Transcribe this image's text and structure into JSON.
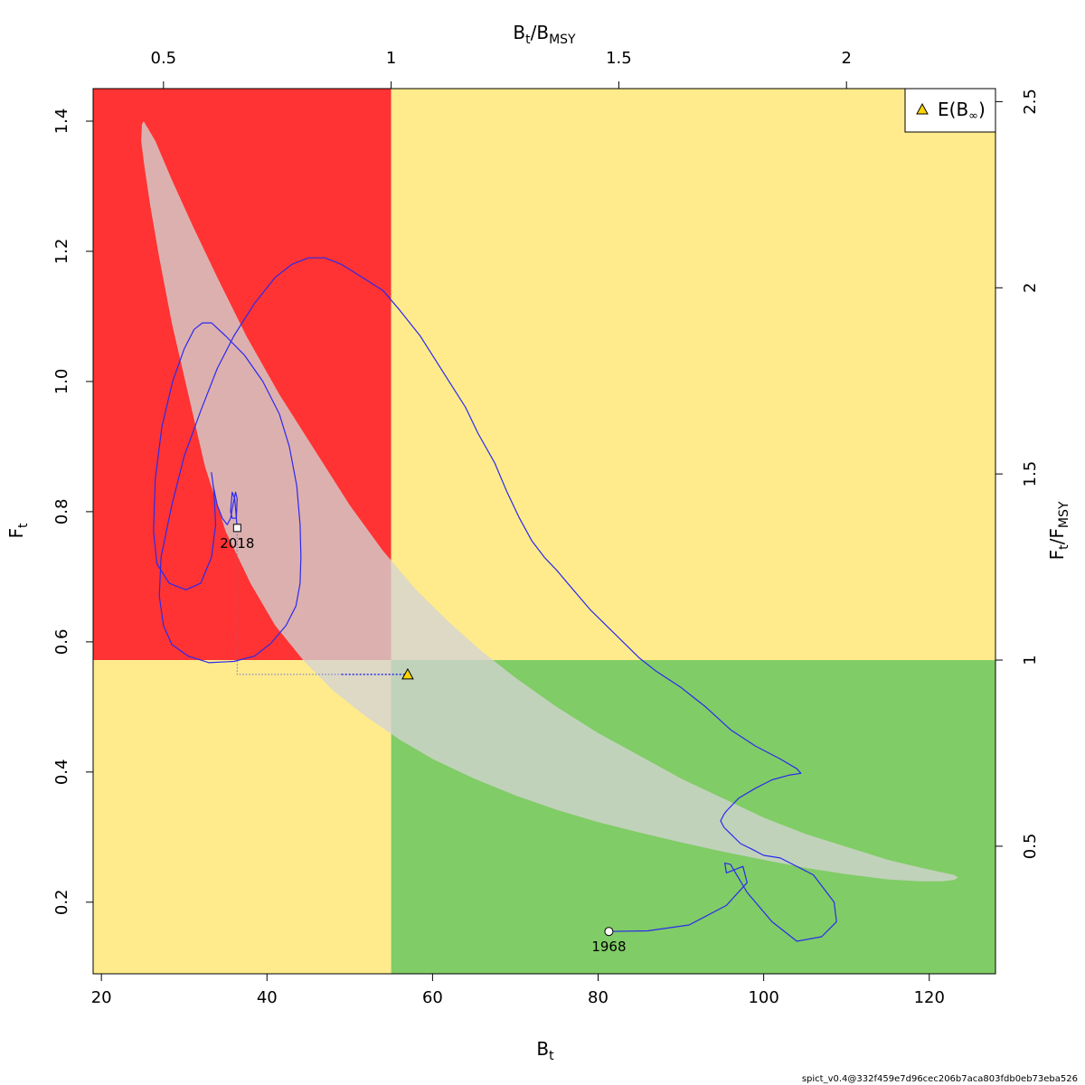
{
  "chart_data": {
    "type": "scatter",
    "axes": {
      "x_bottom": {
        "label_main": "B",
        "label_sub": "t",
        "lim": [
          19,
          128
        ],
        "ticks": [
          20,
          40,
          60,
          80,
          100,
          120
        ]
      },
      "y_left": {
        "label_main": "F",
        "label_sub": "t",
        "lim": [
          0.09,
          1.45
        ],
        "ticks": [
          0.2,
          0.4,
          0.6,
          0.8,
          1.0,
          1.2,
          1.4
        ],
        "tick_labels": [
          "0.2",
          "0.4",
          "0.6",
          "0.8",
          "1.0",
          "1.2",
          "1.4"
        ]
      },
      "x_top": {
        "label_num": "B",
        "label_num_sub": "t",
        "label_den": "B",
        "label_den_sub": "MSY",
        "ticks": [
          0.5,
          1,
          1.5,
          2
        ],
        "tick_labels": [
          "0.5",
          "1",
          "1.5",
          "2"
        ]
      },
      "y_right": {
        "label_num": "F",
        "label_num_sub": "t",
        "label_den": "F",
        "label_den_sub": "MSY",
        "ticks": [
          0.5,
          1,
          1.5,
          2,
          2.5
        ],
        "tick_labels": [
          "0.5",
          "1",
          "1.5",
          "2",
          "2.5"
        ]
      }
    },
    "reference": {
      "Bmsy": 55,
      "Fmsy": 0.572
    },
    "zones": {
      "overfished_overfishing": "#ff3333",
      "caution": "#ffeb8c",
      "healthy": "#80cc66"
    },
    "confidence_region": {
      "fill": "#d3d3d3",
      "opacity": 0.78,
      "x": [
        25.1,
        26.5,
        28.5,
        31,
        34,
        37.5,
        41.5,
        46,
        50,
        54,
        58,
        62,
        66,
        70,
        75,
        80,
        85,
        90,
        95,
        100,
        105,
        110,
        115,
        119,
        121.5,
        123,
        123.5,
        123,
        121.5,
        119,
        115,
        110,
        105,
        100,
        95,
        90,
        85,
        80,
        75,
        70,
        65,
        60,
        56,
        52,
        48,
        44.5,
        41,
        38,
        35,
        32.5,
        30.5,
        28.5,
        27,
        25.9,
        25.2,
        24.8,
        24.9
      ],
      "y": [
        1.4,
        1.37,
        1.31,
        1.24,
        1.16,
        1.07,
        0.98,
        0.89,
        0.81,
        0.74,
        0.68,
        0.63,
        0.585,
        0.545,
        0.5,
        0.46,
        0.425,
        0.39,
        0.36,
        0.33,
        0.305,
        0.285,
        0.265,
        0.253,
        0.246,
        0.242,
        0.238,
        0.234,
        0.232,
        0.232,
        0.235,
        0.243,
        0.253,
        0.265,
        0.278,
        0.292,
        0.307,
        0.323,
        0.342,
        0.364,
        0.39,
        0.42,
        0.45,
        0.485,
        0.525,
        0.57,
        0.625,
        0.69,
        0.77,
        0.87,
        0.98,
        1.09,
        1.19,
        1.27,
        1.33,
        1.37,
        1.395
      ]
    },
    "series": [
      {
        "color": "#2a2aee",
        "x": [
          81.3,
          86,
          91,
          95.5,
          98,
          97.5,
          95.5,
          95.3,
          96,
          98,
          101,
          104,
          107,
          108.8,
          108.5,
          106,
          102,
          100,
          98.5,
          97.2,
          96,
          95.2,
          94.8,
          95.2,
          95.5,
          97,
          99,
          101,
          103,
          104.5,
          104,
          102,
          99,
          96,
          93,
          90,
          87,
          85,
          83,
          81,
          79,
          77,
          75,
          73.5,
          72,
          70.5,
          69,
          67.5,
          65.5,
          64,
          62,
          60,
          58.5,
          56,
          54,
          51.5,
          49,
          47,
          45,
          43,
          41,
          38.5,
          36,
          34,
          32,
          30,
          28.5,
          27.2,
          27,
          27.5,
          28.5,
          30.5,
          33,
          36,
          38.5,
          40.5,
          42.3,
          43.5,
          44,
          44.1,
          44,
          43.6,
          42.7,
          41.5,
          39.5,
          37.3,
          35,
          33.3,
          32.2,
          31.2,
          30,
          28.6,
          27.3,
          26.5,
          26.3,
          26.7,
          28.2,
          30.2,
          32,
          33.3,
          33.8,
          33.6,
          33.3,
          33.5,
          34,
          34.6,
          35.2,
          35.6,
          35.9,
          36.2,
          36.4,
          36.3,
          35.8,
          35.6,
          35.8,
          36.1,
          36.4
        ],
        "y": [
          0.155,
          0.156,
          0.165,
          0.195,
          0.23,
          0.255,
          0.245,
          0.26,
          0.258,
          0.215,
          0.17,
          0.14,
          0.147,
          0.17,
          0.2,
          0.242,
          0.268,
          0.272,
          0.282,
          0.29,
          0.305,
          0.315,
          0.325,
          0.335,
          0.34,
          0.36,
          0.375,
          0.388,
          0.395,
          0.398,
          0.405,
          0.42,
          0.44,
          0.465,
          0.5,
          0.53,
          0.555,
          0.575,
          0.6,
          0.625,
          0.65,
          0.68,
          0.71,
          0.73,
          0.755,
          0.79,
          0.83,
          0.875,
          0.92,
          0.96,
          1.0,
          1.04,
          1.07,
          1.11,
          1.14,
          1.16,
          1.18,
          1.19,
          1.19,
          1.18,
          1.16,
          1.12,
          1.07,
          1.02,
          0.955,
          0.885,
          0.81,
          0.73,
          0.67,
          0.625,
          0.596,
          0.578,
          0.568,
          0.57,
          0.578,
          0.598,
          0.625,
          0.655,
          0.69,
          0.73,
          0.78,
          0.84,
          0.9,
          0.95,
          1.0,
          1.04,
          1.07,
          1.09,
          1.09,
          1.08,
          1.05,
          1.0,
          0.93,
          0.85,
          0.77,
          0.72,
          0.69,
          0.68,
          0.69,
          0.73,
          0.78,
          0.83,
          0.86,
          0.84,
          0.81,
          0.79,
          0.78,
          0.79,
          0.81,
          0.83,
          0.82,
          0.79,
          0.79,
          0.8,
          0.83,
          0.82,
          0.775
        ]
      }
    ],
    "points": [
      {
        "label": "1968",
        "x": 81.3,
        "y": 0.155,
        "shape": "circle",
        "fill": "#ffffff"
      },
      {
        "label": "2018",
        "x": 36.4,
        "y": 0.775,
        "shape": "square",
        "fill": "#ffffff"
      }
    ],
    "projection": {
      "x": [
        36.4,
        36.4,
        49,
        57
      ],
      "y": [
        0.775,
        0.55,
        0.55,
        0.55
      ]
    },
    "prediction": {
      "x": 57,
      "y": 0.55,
      "shape": "triangle",
      "fill": "#ffd400"
    },
    "legend": {
      "position": "top-right",
      "label_main": "E(B",
      "label_sub": "∞",
      "label_end": ")"
    }
  },
  "footer": "spict_v0.4@332f459e7d96cec206b7aca803fdb0eb73eba526"
}
